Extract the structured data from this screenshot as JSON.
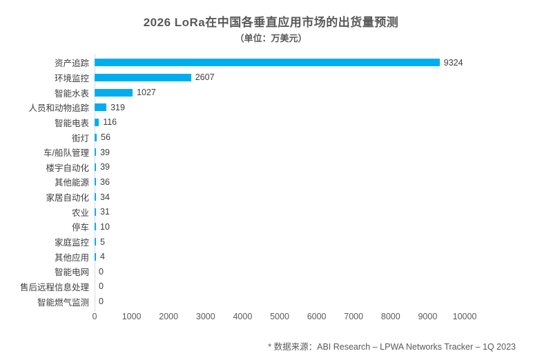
{
  "title": "2026 LoRa在中国各垂直应用市场的出货量预测",
  "subtitle": "（单位：万美元）",
  "source_note": "* 数据来源：ABI Research – LPWA Networks Tracker – 1Q 2023",
  "colors": {
    "bar": "#00AEEF",
    "title_text": "#595959",
    "label_text": "#3d3d3d",
    "tick_text": "#595959",
    "axis_line": "#d9d9d9",
    "background": "#ffffff"
  },
  "chart_data": {
    "type": "bar",
    "orientation": "horizontal",
    "title": "2026 LoRa在中国各垂直应用市场的出货量预测",
    "subtitle": "（单位：万美元）",
    "xlabel": "",
    "ylabel": "",
    "categories": [
      "资产追踪",
      "环境监控",
      "智能水表",
      "人员和动物追踪",
      "智能电表",
      "街灯",
      "车/船队管理",
      "楼宇自动化",
      "其他能源",
      "家居自动化",
      "农业",
      "停车",
      "家庭监控",
      "其他应用",
      "智能电网",
      "售后远程信息处理",
      "智能燃气监测"
    ],
    "values": [
      9324,
      2607,
      1027,
      319,
      116,
      56,
      39,
      39,
      36,
      34,
      31,
      10,
      5,
      4,
      0,
      0,
      0
    ],
    "xlim": [
      0,
      10000
    ],
    "xticks": [
      0,
      1000,
      2000,
      3000,
      4000,
      5000,
      6000,
      7000,
      8000,
      9000,
      10000
    ],
    "grid": false,
    "legend": false,
    "data_labels": true
  }
}
